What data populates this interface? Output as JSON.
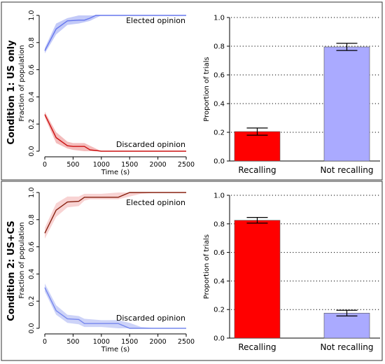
{
  "panels": [
    {
      "condition_label": "Condition 1: US only",
      "line_chart": {
        "ylabel": "Fraction of population",
        "xlabel": "Time (s)",
        "xlim": [
          0,
          2500
        ],
        "ylim": [
          0,
          1
        ],
        "xticks": [
          0,
          500,
          1000,
          1500,
          2000,
          2500
        ],
        "yticks": [
          0.0,
          0.2,
          0.4,
          0.6,
          0.8,
          1.0
        ],
        "series": [
          {
            "name": "Elected opinion",
            "color": "#6677ee",
            "band_color": "#aab4f5",
            "x": [
              0,
              200,
              400,
              600,
              700,
              800,
              900,
              1000,
              1200,
              1500,
              2000,
              2500
            ],
            "y": [
              0.74,
              0.9,
              0.96,
              0.965,
              0.965,
              0.98,
              1.0,
              1.0,
              1.0,
              1.0,
              1.0,
              1.0
            ],
            "lower": [
              0.72,
              0.86,
              0.93,
              0.94,
              0.95,
              0.96,
              0.98,
              1.0,
              1.0,
              1.0,
              1.0,
              1.0
            ],
            "upper": [
              0.76,
              0.94,
              0.98,
              1.0,
              1.0,
              1.0,
              1.0,
              1.0,
              1.0,
              1.0,
              1.0,
              1.0
            ]
          },
          {
            "name": "Discarded opinion",
            "color": "#cc1111",
            "band_color": "#f0a0a0",
            "x": [
              0,
              200,
              400,
              500,
              700,
              800,
              900,
              1000,
              1500,
              2000,
              2500
            ],
            "y": [
              0.27,
              0.1,
              0.04,
              0.035,
              0.035,
              0.01,
              0.005,
              0.0,
              0.0,
              0.0,
              0.0
            ],
            "lower": [
              0.25,
              0.06,
              0.02,
              0.01,
              0.0,
              0.0,
              0.0,
              0.0,
              0.0,
              0.0,
              0.0
            ],
            "upper": [
              0.29,
              0.14,
              0.07,
              0.06,
              0.06,
              0.04,
              0.02,
              0.0,
              0.0,
              0.0,
              0.0
            ]
          }
        ]
      },
      "bar_chart": {
        "ylabel": "Proportion of trials",
        "ylim": [
          0,
          1
        ],
        "yticks": [
          0.0,
          0.2,
          0.4,
          0.6,
          0.8,
          1.0
        ],
        "grid": "dotted horizontal",
        "bars": [
          {
            "category": "Recalling",
            "value": 0.205,
            "error": 0.025,
            "color": "#ff0000"
          },
          {
            "category": "Not recalling",
            "value": 0.795,
            "error": 0.025,
            "color": "#aaaaff"
          }
        ]
      }
    },
    {
      "condition_label": "Condition 2: US+CS",
      "line_chart": {
        "ylabel": "Fraction of population",
        "xlabel": "Time (s)",
        "xlim": [
          0,
          2500
        ],
        "ylim": [
          0,
          1
        ],
        "xticks": [
          0,
          500,
          1000,
          1500,
          2000,
          2500
        ],
        "yticks": [
          0.0,
          0.2,
          0.4,
          0.6,
          0.8,
          1.0
        ],
        "series": [
          {
            "name": "Elected opinion",
            "color": "#882211",
            "band_color": "#f5c0c0",
            "x": [
              0,
              200,
              400,
              600,
              700,
              800,
              1000,
              1300,
              1500,
              1700,
              2000,
              2500
            ],
            "y": [
              0.7,
              0.87,
              0.93,
              0.935,
              0.965,
              0.965,
              0.965,
              0.965,
              1.0,
              1.0,
              1.0,
              1.0
            ],
            "lower": [
              0.66,
              0.82,
              0.89,
              0.9,
              0.94,
              0.95,
              0.95,
              0.95,
              0.97,
              0.99,
              1.0,
              1.0
            ],
            "upper": [
              0.74,
              0.92,
              0.97,
              0.97,
              0.99,
              0.99,
              0.99,
              1.0,
              1.0,
              1.0,
              1.0,
              1.0
            ]
          },
          {
            "name": "Discarded opinion",
            "color": "#7788ee",
            "band_color": "#b8c0f5",
            "x": [
              0,
              200,
              400,
              600,
              700,
              1000,
              1300,
              1500,
              1700,
              2000,
              2500
            ],
            "y": [
              0.3,
              0.13,
              0.07,
              0.065,
              0.035,
              0.035,
              0.035,
              0.0,
              0.0,
              0.0,
              0.0
            ],
            "lower": [
              0.27,
              0.1,
              0.04,
              0.03,
              0.01,
              0.01,
              0.0,
              0.0,
              0.0,
              0.0,
              0.0
            ],
            "upper": [
              0.33,
              0.17,
              0.1,
              0.09,
              0.07,
              0.06,
              0.06,
              0.04,
              0.01,
              0.0,
              0.0
            ]
          }
        ]
      },
      "bar_chart": {
        "ylabel": "Proportion of trials",
        "ylim": [
          0,
          1
        ],
        "yticks": [
          0.0,
          0.2,
          0.4,
          0.6,
          0.8,
          1.0
        ],
        "grid": "dotted horizontal",
        "bars": [
          {
            "category": "Recalling",
            "value": 0.825,
            "error": 0.02,
            "color": "#ff0000"
          },
          {
            "category": "Not recalling",
            "value": 0.175,
            "error": 0.02,
            "color": "#aaaaff"
          }
        ]
      }
    }
  ],
  "chart_data": [
    {
      "type": "line",
      "condition": "Condition 1: US only",
      "xlabel": "Time (s)",
      "ylabel": "Fraction of population",
      "xlim": [
        0,
        2500
      ],
      "ylim": [
        0,
        1
      ],
      "series": [
        {
          "name": "Elected opinion",
          "x": [
            0,
            200,
            400,
            600,
            800,
            1000,
            2500
          ],
          "values": [
            0.74,
            0.9,
            0.96,
            0.965,
            0.98,
            1.0,
            1.0
          ]
        },
        {
          "name": "Discarded opinion",
          "x": [
            0,
            200,
            400,
            700,
            800,
            1000,
            2500
          ],
          "values": [
            0.27,
            0.1,
            0.04,
            0.035,
            0.01,
            0.0,
            0.0
          ]
        }
      ]
    },
    {
      "type": "bar",
      "condition": "Condition 1: US only",
      "ylabel": "Proportion of trials",
      "ylim": [
        0,
        1
      ],
      "categories": [
        "Recalling",
        "Not recalling"
      ],
      "values": [
        0.205,
        0.795
      ]
    },
    {
      "type": "line",
      "condition": "Condition 2: US+CS",
      "xlabel": "Time (s)",
      "ylabel": "Fraction of population",
      "xlim": [
        0,
        2500
      ],
      "ylim": [
        0,
        1
      ],
      "series": [
        {
          "name": "Elected opinion",
          "x": [
            0,
            200,
            400,
            700,
            1300,
            1500,
            2500
          ],
          "values": [
            0.7,
            0.87,
            0.93,
            0.965,
            0.965,
            1.0,
            1.0
          ]
        },
        {
          "name": "Discarded opinion",
          "x": [
            0,
            200,
            400,
            600,
            700,
            1300,
            1500,
            2500
          ],
          "values": [
            0.3,
            0.13,
            0.07,
            0.065,
            0.035,
            0.035,
            0.0,
            0.0
          ]
        }
      ]
    },
    {
      "type": "bar",
      "condition": "Condition 2: US+CS",
      "ylabel": "Proportion of trials",
      "ylim": [
        0,
        1
      ],
      "categories": [
        "Recalling",
        "Not recalling"
      ],
      "values": [
        0.825,
        0.175
      ]
    }
  ]
}
